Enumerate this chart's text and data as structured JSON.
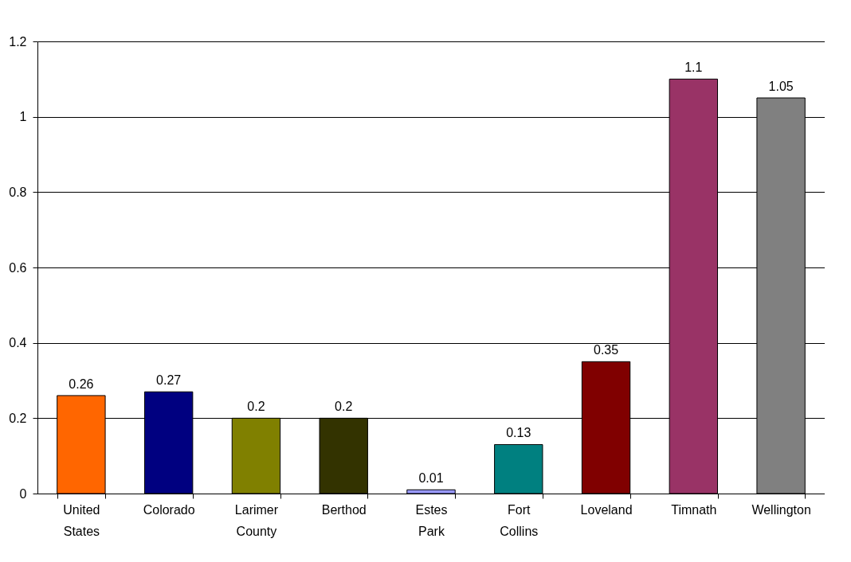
{
  "chart_data": {
    "type": "bar",
    "categories": [
      "United States",
      "Colorado",
      "Larimer County",
      "Berthod",
      "Estes Park",
      "Fort Collins",
      "Loveland",
      "Timnath",
      "Wellington"
    ],
    "values": [
      0.26,
      0.27,
      0.2,
      0.2,
      0.01,
      0.13,
      0.35,
      1.1,
      1.05
    ],
    "colors": [
      "#ff6600",
      "#000080",
      "#808000",
      "#333300",
      "#9999ff",
      "#008080",
      "#800000",
      "#993366",
      "#808080"
    ],
    "ylim": [
      0,
      1.2
    ],
    "yticks": [
      0,
      0.2,
      0.4,
      0.6,
      0.8,
      1,
      1.2
    ],
    "grid": "y",
    "data_labels": true
  }
}
